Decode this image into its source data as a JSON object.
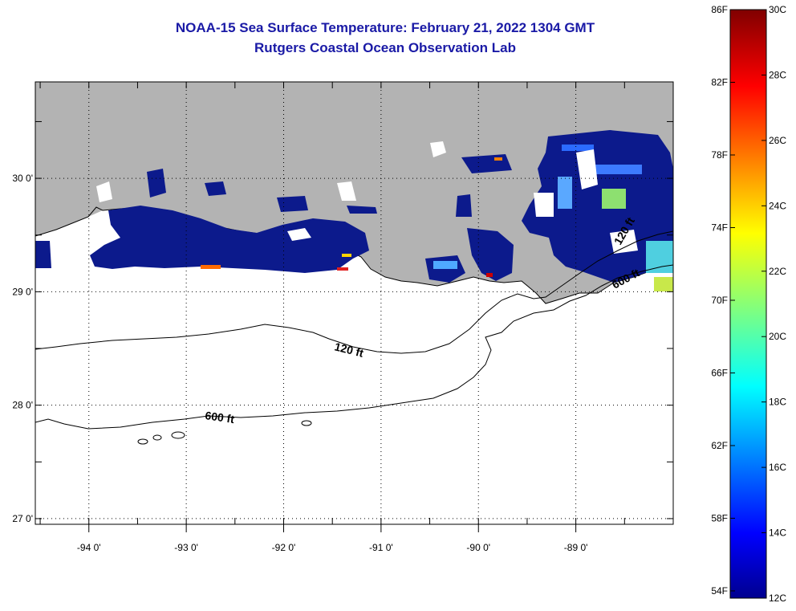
{
  "title": {
    "line1": "NOAA-15 Sea Surface Temperature:  February 21, 2022 1304 GMT",
    "line2": "Rutgers Coastal Ocean Observation Lab"
  },
  "colors": {
    "land": "#b3b3b3",
    "ocean_nodata": "#ffffff",
    "sst_dominant": "#0c1a8c",
    "title_text": "#1a1aa6"
  },
  "map": {
    "lon_labels": [
      "-94 0'",
      "-93 0'",
      "-92 0'",
      "-91 0'",
      "-90 0'",
      "-89 0'"
    ],
    "lat_labels": [
      "30 0'",
      "29 0'",
      "28 0'",
      "27 0'"
    ],
    "lon_values": [
      -94,
      -93,
      -92,
      -91,
      -90,
      -89
    ],
    "lat_values": [
      30,
      29,
      28,
      27
    ],
    "extent": {
      "lon_min": -94.55,
      "lon_max": -88.0,
      "lat_min": 26.95,
      "lat_max": 30.85
    }
  },
  "contours": [
    {
      "label": "120 ft"
    },
    {
      "label": "600 ft"
    },
    {
      "label": "120 ft"
    },
    {
      "label": "600 ft"
    }
  ],
  "colorbar": {
    "f_labels": [
      "86F",
      "82F",
      "78F",
      "74F",
      "70F",
      "66F",
      "62F",
      "58F",
      "54F"
    ],
    "c_labels": [
      "30C",
      "28C",
      "26C",
      "24C",
      "22C",
      "20C",
      "18C",
      "16C",
      "14C",
      "12C"
    ],
    "f_values": [
      86,
      82,
      78,
      74,
      70,
      66,
      62,
      58,
      54
    ],
    "c_values": [
      30,
      28,
      26,
      24,
      22,
      20,
      18,
      16,
      14,
      12
    ],
    "colormap": "jet",
    "range_c": [
      12,
      30
    ]
  }
}
